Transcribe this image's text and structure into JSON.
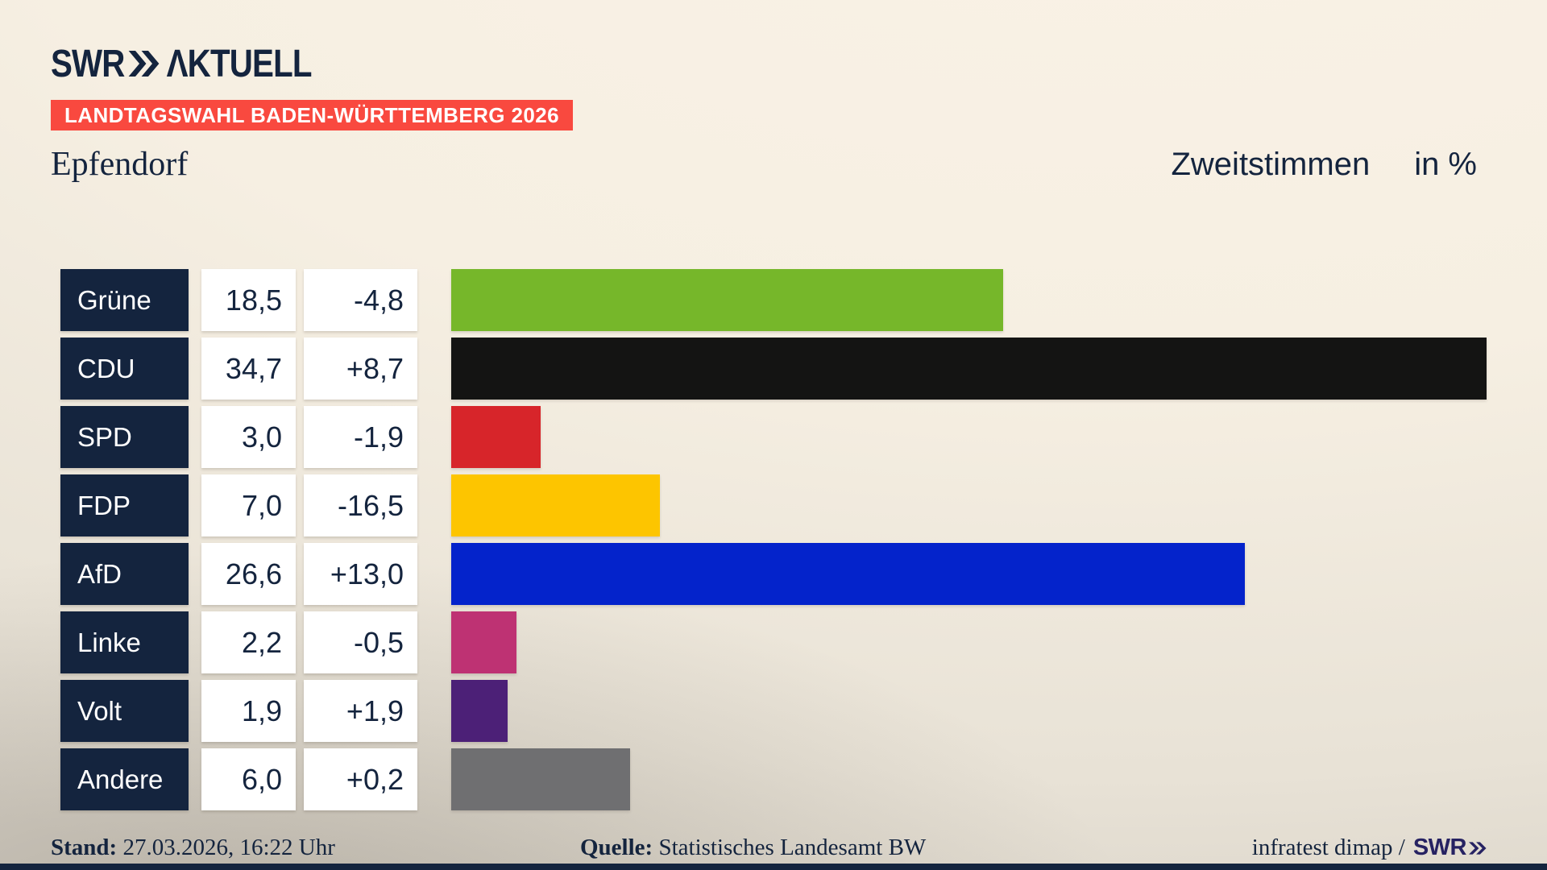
{
  "header": {
    "logo_swr": "SWR",
    "logo_aktuell": "ΛKTUELL",
    "banner": "LANDTAGSWAHL BADEN-WÜRTTEMBERG 2026",
    "municipality": "Epfendorf",
    "measure": "Zweitstimmen",
    "unit": "in %"
  },
  "chart_data": {
    "type": "bar",
    "orientation": "horizontal",
    "title": "Landtagswahl Baden-Württemberg 2026 – Epfendorf – Zweitstimmen in %",
    "scale_max": 34.7,
    "categories": [
      "Grüne",
      "CDU",
      "SPD",
      "FDP",
      "AfD",
      "Linke",
      "Volt",
      "Andere"
    ],
    "values": [
      18.5,
      34.7,
      3.0,
      7.0,
      26.6,
      2.2,
      1.9,
      6.0
    ],
    "changes": [
      -4.8,
      8.7,
      -1.9,
      -16.5,
      13.0,
      -0.5,
      1.9,
      0.2
    ],
    "parties": [
      {
        "name": "Grüne",
        "value": "18,5",
        "change": "-4,8",
        "value_num": 18.5,
        "color": "#76B72A"
      },
      {
        "name": "CDU",
        "value": "34,7",
        "change": "+8,7",
        "value_num": 34.7,
        "color": "#141413"
      },
      {
        "name": "SPD",
        "value": "3,0",
        "change": "-1,9",
        "value_num": 3.0,
        "color": "#D7252A"
      },
      {
        "name": "FDP",
        "value": "7,0",
        "change": "-16,5",
        "value_num": 7.0,
        "color": "#FDC500"
      },
      {
        "name": "AfD",
        "value": "26,6",
        "change": "+13,0",
        "value_num": 26.6,
        "color": "#0423CB"
      },
      {
        "name": "Linke",
        "value": "2,2",
        "change": "-0,5",
        "value_num": 2.2,
        "color": "#BE3273"
      },
      {
        "name": "Volt",
        "value": "1,9",
        "change": "+1,9",
        "value_num": 1.9,
        "color": "#4C2077"
      },
      {
        "name": "Andere",
        "value": "6,0",
        "change": "+0,2",
        "value_num": 6.0,
        "color": "#6F6F71"
      }
    ]
  },
  "footer": {
    "stand_label": "Stand:",
    "stand_value": " 27.03.2026, 16:22 Uhr",
    "quelle_label": "Quelle:",
    "quelle_value": " Statistisches Landesamt BW",
    "credit_text": "infratest dimap /",
    "credit_logo": "SWR"
  },
  "colors": {
    "navy": "#14243E",
    "banner_red": "#F9493F",
    "credit_logo_color": "#262262"
  }
}
